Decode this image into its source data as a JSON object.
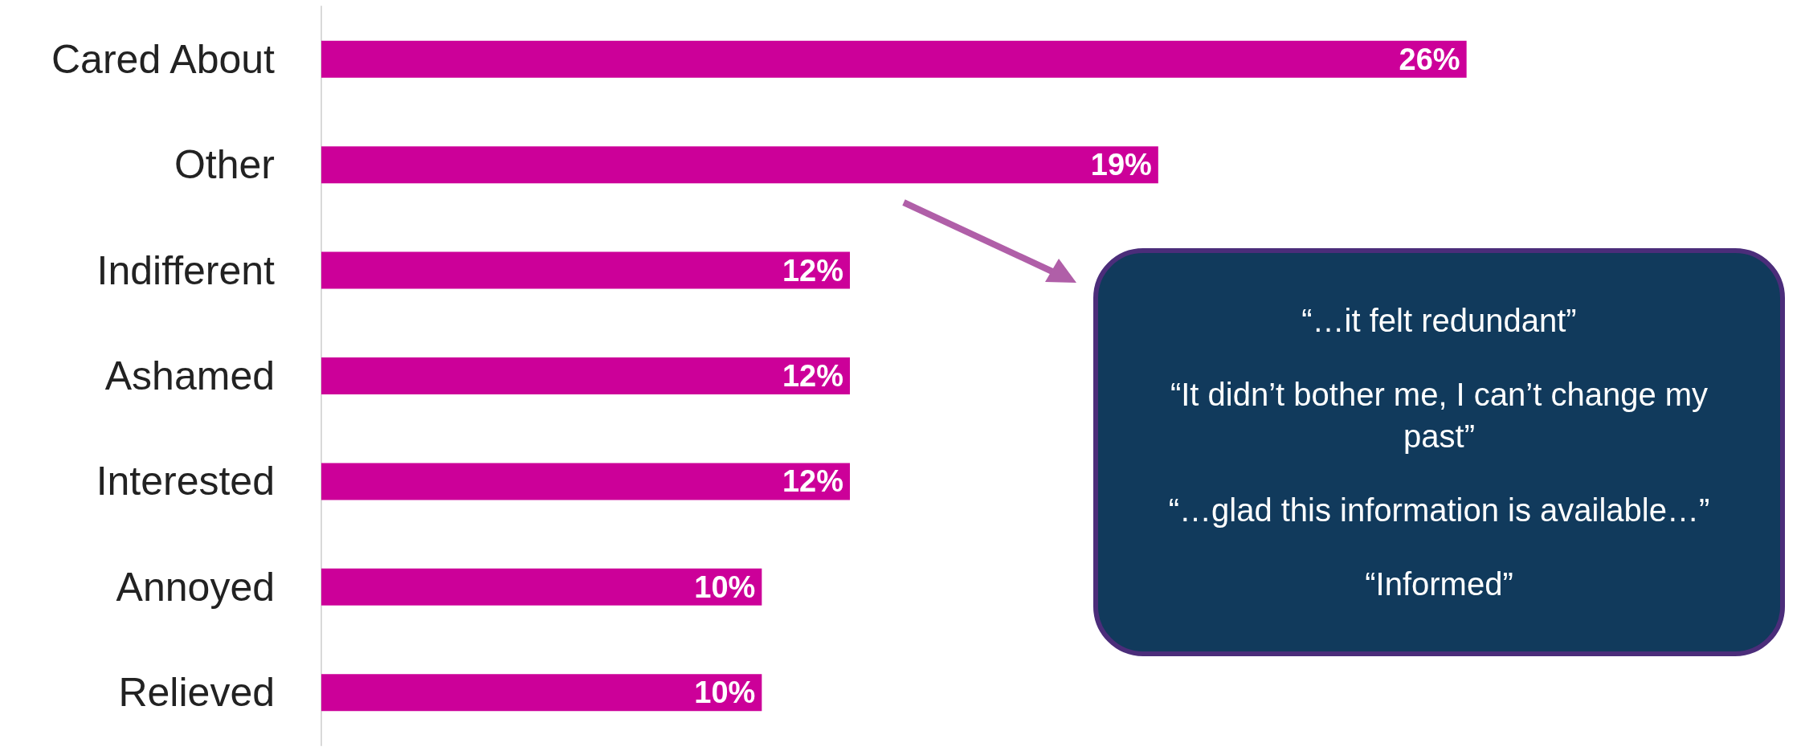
{
  "chart_data": {
    "type": "bar",
    "orientation": "horizontal",
    "categories": [
      "Cared About",
      "Other",
      "Indifferent",
      "Ashamed",
      "Interested",
      "Annoyed",
      "Relieved"
    ],
    "values": [
      26,
      19,
      12,
      12,
      12,
      10,
      10
    ],
    "value_labels": [
      "26%",
      "19%",
      "12%",
      "12%",
      "12%",
      "10%",
      "10%"
    ],
    "color": "#cc0099",
    "tick_labels": "y",
    "annotations": [
      "“…it felt redundant”",
      "“It didn’t bother me, I can’t change my past”",
      "“…glad this information is available…”",
      "“Informed”"
    ]
  }
}
